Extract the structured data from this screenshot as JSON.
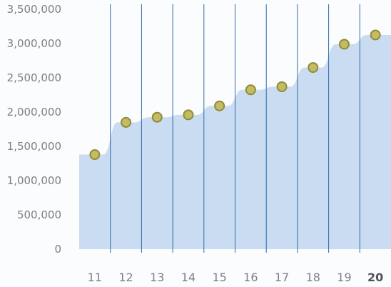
{
  "chart_data": {
    "type": "area",
    "title": "",
    "xlabel": "",
    "ylabel": "",
    "categories": [
      "11",
      "12",
      "13",
      "14",
      "15",
      "16",
      "17",
      "18",
      "19",
      "20"
    ],
    "highlighted_category": "20",
    "values": [
      1380000,
      1850000,
      1925000,
      1960000,
      2090000,
      2325000,
      2370000,
      2650000,
      2990000,
      3125000
    ],
    "ylim": [
      0,
      3500000
    ],
    "y_ticks": [
      0,
      500000,
      1000000,
      1500000,
      2000000,
      2500000,
      3000000,
      3500000
    ],
    "y_tick_labels": [
      "0",
      "500,000",
      "1,000,000",
      "1,500,000",
      "2,000,000",
      "2,500,000",
      "3,000,000",
      "3,500,000"
    ],
    "grid": "vertical",
    "legend": "none",
    "colors": {
      "area_fill": "#c9dcf1",
      "grid_line": "#2f69ad",
      "marker_fill": "#c4bb64",
      "marker_stroke": "#8f8b35",
      "tick_text": "#7b7f86",
      "tick_text_emphasis": "#505459"
    }
  }
}
